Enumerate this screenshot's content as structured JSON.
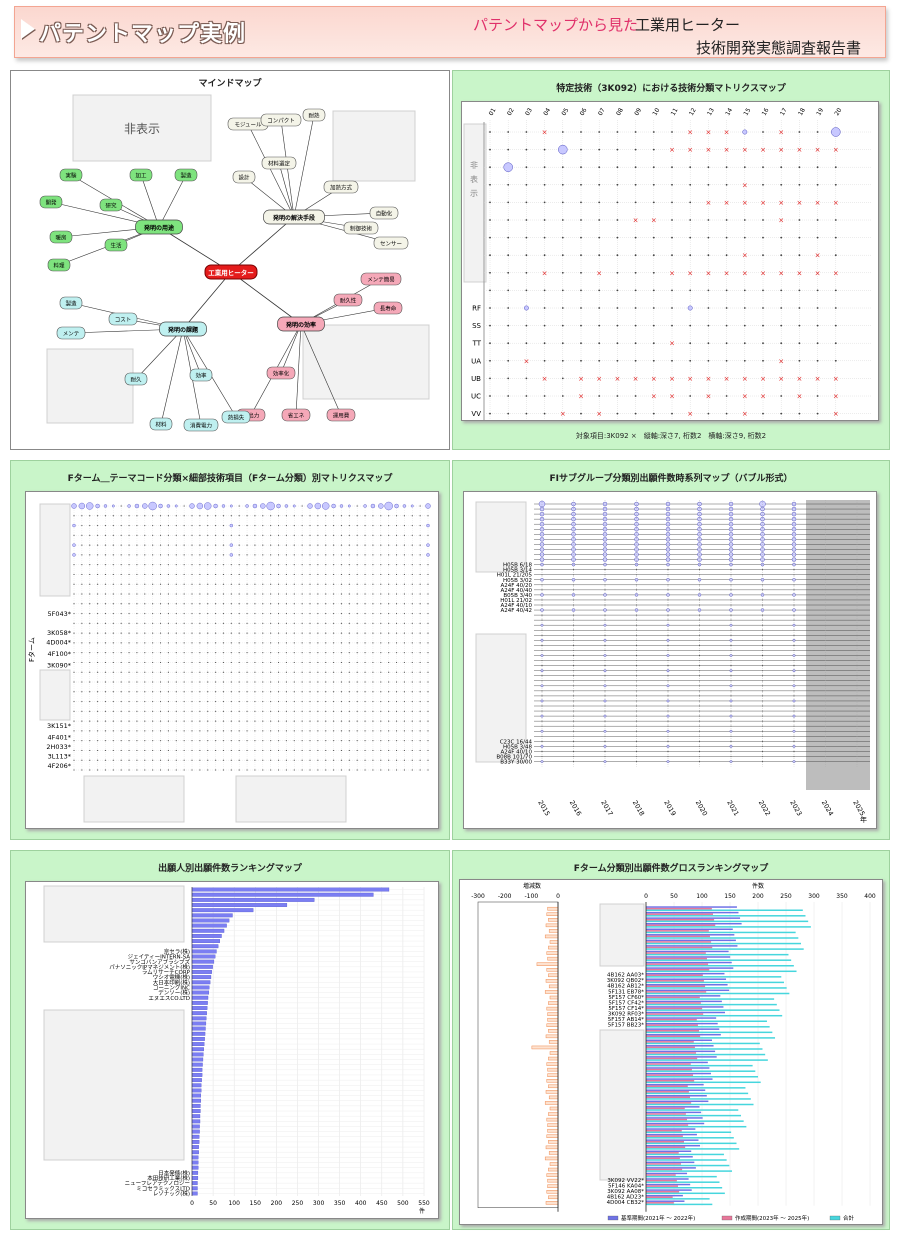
{
  "header": {
    "title": "パテントマップ実例",
    "subtitle_pink": "パテントマップから見た",
    "subtitle_topic": "工業用ヒーター",
    "subtitle_report": "技術開発実態調査報告書"
  },
  "mindmap": {
    "title": "マインドマップ",
    "hidden_label": "非表示",
    "center": "工業用ヒーター",
    "branches": [
      {
        "label": "発明の用途",
        "children": [
          "加工",
          "製造",
          "研究",
          "実験",
          "開発",
          "生活",
          "暖房",
          "料理"
        ]
      },
      {
        "label": "発明の解決手段",
        "children": [
          "材料選定",
          "設計",
          "モジュール",
          "コンパクト",
          "耐熱",
          "加熱方式",
          "制御技術",
          "自動化",
          "センサー"
        ]
      },
      {
        "label": "発明の効率",
        "children": [
          "耐久性",
          "メンテ簡易",
          "長寿命",
          "効率化",
          "高出力",
          "省エネ",
          "運用費"
        ]
      },
      {
        "label": "発明の課題",
        "children": [
          "コスト",
          "製造",
          "メンテ",
          "耐久",
          "効率",
          "材料",
          "消費電力",
          "熱損失"
        ]
      }
    ]
  },
  "chart_data": [
    {
      "type": "scatter",
      "title": "特定技術（3K092）における技術分類マトリクスマップ",
      "note": "対象項目:3K092 ×　縦軸:深さ7, 桁数2　横軸:深さ9, 桁数2",
      "x_categories": [
        "01",
        "02",
        "03",
        "04",
        "05",
        "06",
        "07",
        "08",
        "09",
        "10",
        "11",
        "12",
        "13",
        "14",
        "15",
        "16",
        "17",
        "18",
        "19",
        "20"
      ],
      "y_hidden_label": "非表示",
      "y_categories": [
        "RF",
        "SS",
        "TT",
        "UA",
        "UB",
        "UC",
        "VV"
      ],
      "rows_visible": {
        "RF": [
          0,
          1,
          2,
          0,
          0,
          0,
          0,
          0,
          0,
          0,
          0,
          2,
          1,
          1,
          1,
          0,
          1,
          0,
          1,
          1
        ],
        "SS": [
          0,
          0,
          0,
          0,
          0,
          0,
          0,
          0,
          0,
          0,
          0,
          0,
          0,
          0,
          0,
          1,
          0,
          0,
          0,
          0
        ],
        "TT": [
          0,
          0,
          0,
          0,
          0,
          0,
          0,
          0,
          0,
          0,
          3,
          0,
          0,
          0,
          0,
          0,
          0,
          0,
          0,
          0
        ],
        "UA": [
          0,
          0,
          3,
          0,
          0,
          0,
          0,
          0,
          0,
          0,
          0,
          0,
          0,
          0,
          0,
          0,
          3,
          0,
          0,
          0
        ],
        "UB": [
          0,
          0,
          0,
          3,
          0,
          3,
          3,
          3,
          3,
          3,
          3,
          3,
          3,
          3,
          3,
          3,
          3,
          3,
          3,
          3
        ],
        "UC": [
          0,
          0,
          0,
          0,
          0,
          3,
          0,
          0,
          0,
          3,
          3,
          0,
          3,
          0,
          3,
          3,
          0,
          3,
          0,
          3
        ],
        "VV": [
          1,
          0,
          1,
          0,
          3,
          0,
          3,
          0,
          0,
          0,
          0,
          3,
          0,
          0,
          3,
          0,
          0,
          0,
          0,
          3
        ]
      }
    },
    {
      "type": "scatter",
      "title": "Fターム＿テーマコード分類×細部技術項目（Fターム分類）別マトリクスマップ",
      "ylabel": "Fターム",
      "y_categories": [
        "5F043*",
        "3K058*",
        "4D004*",
        "4F100*",
        "3K090*",
        "3K151*",
        "4F401*",
        "2H033*",
        "3L113*",
        "4F206*"
      ]
    },
    {
      "type": "scatter",
      "title": "FIサブグループ分類別出願件数時系列マップ（バブル形式）",
      "x_categories": [
        "2015",
        "2016",
        "2017",
        "2018",
        "2019",
        "2020",
        "2021",
        "2022",
        "2023",
        "2024",
        "2025"
      ],
      "x_unit": "年",
      "y_categories_top": [
        "H05B 6/18",
        "H05B 3/14",
        "H01L 21/205",
        "H05B 3/02",
        "A24F 40/20",
        "A24F 40/40",
        "B05B 3/40",
        "H01L 21/02",
        "A24F 40/10",
        "A24F 40/42"
      ],
      "y_categories_bottom": [
        "C23C 16/44",
        "H05B 3/48",
        "A24F 40/10",
        "B08B 101/70",
        "B33Y 30/00"
      ]
    },
    {
      "type": "bar",
      "title": "出願人別出願件数ランキングマップ",
      "xlim": [
        0,
        550
      ],
      "x_ticks": [
        "0",
        "50",
        "100",
        "150",
        "200",
        "250",
        "300",
        "350",
        "400",
        "450",
        "500",
        "550"
      ],
      "x_unit": "件",
      "labels_visible": [
        "京セラ(株)",
        "ジェイティーINTERN-SA",
        "サンゴバンアブラシブズ",
        "パナソニックIPマネジメント(株)",
        "ラムリサーチCORP",
        "ウシオ電機(株)",
        "大日本印刷(株)",
        "コーニングINC",
        "デンソー(株)",
        "エヌエスCO.LTD",
        "日本発條(株)",
        "本田技研工業(株)",
        "ニューフレアテクノロジー",
        "ミコセラミックスLTD",
        "レゾナック(株)"
      ],
      "values": [
        467,
        430,
        290,
        225,
        145,
        96,
        88,
        82,
        76,
        70,
        66,
        62,
        58,
        55,
        52,
        49,
        47,
        45,
        43,
        41,
        40,
        38,
        37,
        36,
        35,
        34,
        33,
        32,
        31,
        30,
        29,
        28,
        27,
        26,
        25,
        24,
        24,
        23,
        22,
        22,
        21,
        21,
        20,
        20,
        19,
        19,
        18,
        18,
        17,
        17,
        16,
        16,
        15,
        15,
        15,
        14,
        14,
        13,
        13,
        13
      ]
    },
    {
      "type": "bar",
      "title": "Fターム分類別出願件数グロスランキングマップ",
      "left_axis_label": "増減数",
      "left_xlim": [
        -300,
        0
      ],
      "left_ticks": [
        "-300",
        "-200",
        "-100",
        "0"
      ],
      "right_axis_label": "件数",
      "right_xlim": [
        0,
        400
      ],
      "right_ticks": [
        "0",
        "50",
        "100",
        "150",
        "200",
        "250",
        "300",
        "350",
        "400"
      ],
      "labels_visible_top": [
        "4B162 AA03*",
        "3K092 QB02*",
        "4B162 AB12*",
        "5F131 EB78*",
        "5F157 CF60*",
        "5F157 CF42*",
        "5F157 CF14*",
        "3K092 RF03*",
        "5F157 AB14*",
        "5F157 BB23*"
      ],
      "labels_visible_bottom": [
        "3K092 VV22*",
        "5F146 KA04*",
        "3K092 AA08*",
        "4B162 AD23*",
        "4D004 CB32*"
      ],
      "legend": [
        "基準期間(2021年 ～ 2022年)",
        "作成期間(2023年 ～ 2025年)",
        "合計"
      ],
      "colors": {
        "base": "#6f72e6",
        "recent": "#e8779a",
        "total": "#46d6dd",
        "diff": "#f08a4f"
      }
    }
  ]
}
